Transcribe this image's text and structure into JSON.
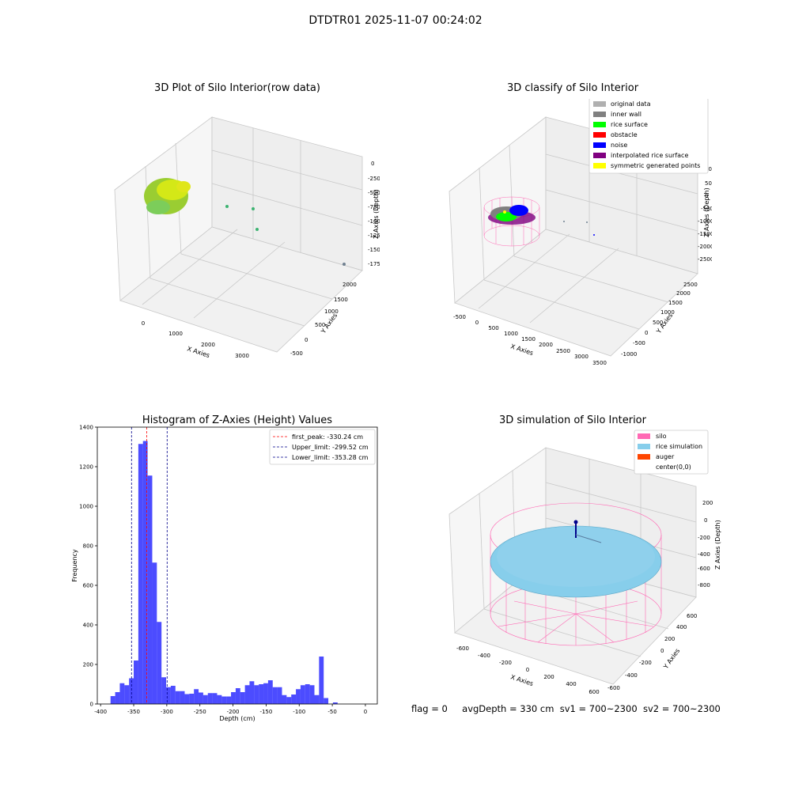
{
  "figure": {
    "suptitle": "DTDTR01 2025-11-07 00:24:02",
    "footer": {
      "flag": "flag = 0",
      "avg_depth": "avgDepth = 330 cm",
      "sv1": "sv1 = 700~2300",
      "sv2": "sv2 = 700~2300"
    }
  },
  "colors": {
    "histogram_bar": "#0000ff",
    "first_peak_line": "#ff0000",
    "limit_line": "#00008b",
    "original_data": "#b0b0b0",
    "inner_wall": "#808080",
    "rice_surface": "#00ff00",
    "obstacle": "#ff0000",
    "noise": "#0000ff",
    "interpolated_rice_surface": "#800080",
    "symmetric_generated_points": "#ffff00",
    "silo": "#ff69b4",
    "rice_simulation": "#87ceeb",
    "auger": "#ff4500"
  },
  "panels": {
    "raw": {
      "title": "3D Plot of Silo Interior(row data)",
      "xlabel": "X Axies",
      "ylabel": "Y Axies",
      "zlabel": "Z Axies (Depth)",
      "x_ticks": [
        "0",
        "1000",
        "2000",
        "3000"
      ],
      "y_ticks": [
        "-500",
        "0",
        "500",
        "1000",
        "1500",
        "2000"
      ],
      "z_ticks": [
        "0",
        "-250",
        "-500",
        "-750",
        "-1000",
        "-1250",
        "-1500",
        "-1750"
      ]
    },
    "classify": {
      "title": "3D classify of Silo Interior",
      "xlabel": "X Axies",
      "ylabel": "Y Axies",
      "zlabel": "Z Axies (Depth)",
      "x_ticks": [
        "-500",
        "0",
        "500",
        "1000",
        "1500",
        "2000",
        "2500",
        "3000",
        "3500"
      ],
      "y_ticks": [
        "-1000",
        "-500",
        "0",
        "500",
        "1000",
        "1500",
        "2000",
        "2500"
      ],
      "z_ticks": [
        "1000",
        "500",
        "0",
        "-500",
        "-1000",
        "-1500",
        "-2000",
        "-2500"
      ],
      "legend": [
        {
          "label": "original data",
          "color": "#b0b0b0"
        },
        {
          "label": "inner wall",
          "color": "#808080"
        },
        {
          "label": "rice surface",
          "color": "#00ff00"
        },
        {
          "label": "obstacle",
          "color": "#ff0000"
        },
        {
          "label": "noise",
          "color": "#0000ff"
        },
        {
          "label": "interpolated rice surface",
          "color": "#800080"
        },
        {
          "label": "symmetric generated points",
          "color": "#ffff00"
        }
      ]
    },
    "simulation": {
      "title": "3D simulation of Silo Interior",
      "xlabel": "X Axies",
      "ylabel": "Y Axies",
      "zlabel": "Z Axies (Depth)",
      "x_ticks": [
        "-600",
        "-400",
        "-200",
        "0",
        "200",
        "400",
        "600"
      ],
      "y_ticks": [
        "-600",
        "-400",
        "-200",
        "0",
        "200",
        "400",
        "600"
      ],
      "z_ticks": [
        "200",
        "0",
        "-200",
        "-400",
        "-600",
        "-800"
      ],
      "legend": [
        {
          "label": "silo",
          "color": "#ff69b4"
        },
        {
          "label": "rice simulation",
          "color": "#87ceeb"
        },
        {
          "label": "auger",
          "color": "#ff4500"
        },
        {
          "label": "center(0,0)",
          "color": ""
        }
      ]
    }
  },
  "chart_data": {
    "type": "bar",
    "title": "Histogram of Z-Axies (Height) Values",
    "xlabel": "Depth (cm)",
    "ylabel": "Frequency",
    "xlim": [
      -405,
      18
    ],
    "ylim": [
      0,
      1400
    ],
    "x_ticks": [
      -400,
      -350,
      -300,
      -250,
      -200,
      -150,
      -100,
      -50,
      0
    ],
    "y_ticks": [
      0,
      200,
      400,
      600,
      800,
      1000,
      1200,
      1400
    ],
    "grid": false,
    "legend_position": "top-right",
    "bin_width": 7,
    "bin_starts": [
      -385,
      -378,
      -371,
      -364,
      -357,
      -350,
      -343,
      -336,
      -329,
      -322,
      -315,
      -308,
      -301,
      -294,
      -287,
      -280,
      -273,
      -266,
      -259,
      -252,
      -245,
      -238,
      -231,
      -224,
      -217,
      -210,
      -203,
      -196,
      -189,
      -182,
      -175,
      -168,
      -161,
      -154,
      -147,
      -140,
      -133,
      -126,
      -119,
      -112,
      -105,
      -98,
      -91,
      -84,
      -77,
      -70,
      -63,
      -56,
      -49,
      -42,
      -35,
      -28,
      -21,
      -14,
      -7,
      0
    ],
    "values": [
      40,
      60,
      105,
      95,
      130,
      220,
      1315,
      1330,
      1155,
      715,
      415,
      135,
      85,
      92,
      65,
      65,
      50,
      52,
      75,
      58,
      45,
      55,
      55,
      45,
      38,
      38,
      60,
      80,
      60,
      95,
      115,
      95,
      100,
      105,
      120,
      85,
      85,
      45,
      35,
      48,
      75,
      95,
      100,
      95,
      45,
      240,
      30,
      0,
      8,
      0,
      0,
      0,
      0,
      0,
      0,
      0
    ],
    "vlines": [
      {
        "label": "first_peak: -330.24 cm",
        "x": -330.24,
        "color": "#ff0000"
      },
      {
        "label": "Upper_limit: -299.52 cm",
        "x": -299.52,
        "color": "#00008b"
      },
      {
        "label": "Lower_limit: -353.28 cm",
        "x": -353.28,
        "color": "#00008b"
      }
    ]
  }
}
